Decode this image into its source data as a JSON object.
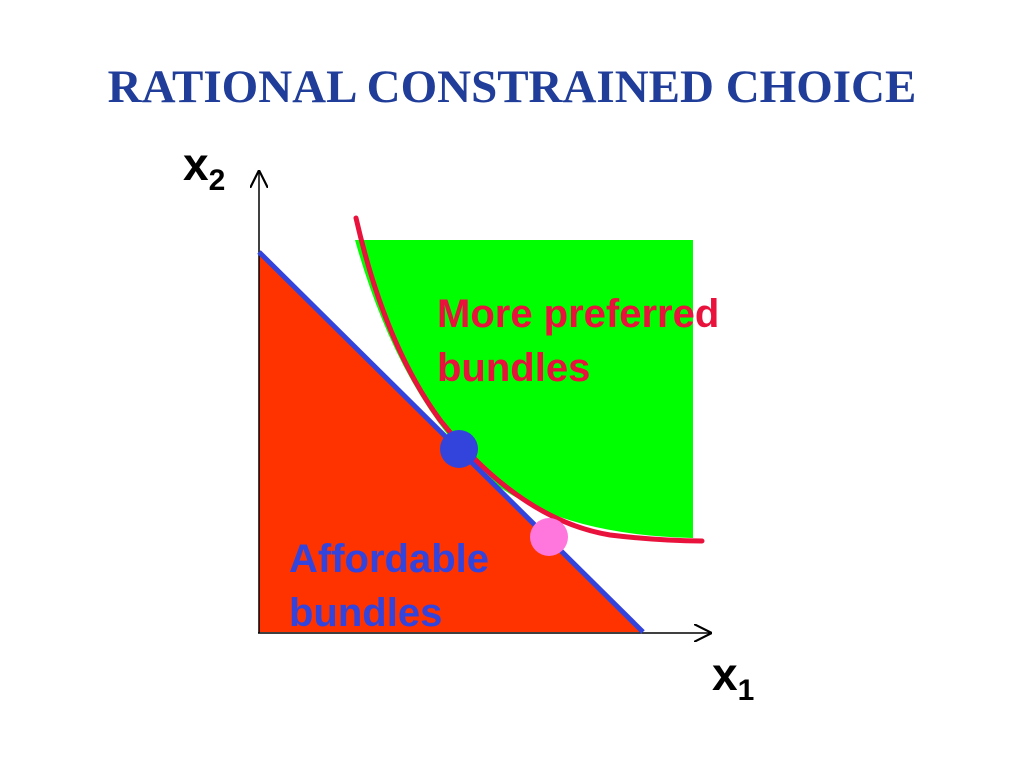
{
  "title": "RATIONAL CONSTRAINED CHOICE",
  "axes": {
    "y_label": {
      "base": "x",
      "sub": "2"
    },
    "x_label": {
      "base": "x",
      "sub": "1"
    }
  },
  "labels": {
    "preferred": [
      "More preferred",
      "bundles"
    ],
    "affordable": [
      "Affordable",
      "bundles"
    ]
  },
  "colors": {
    "title": "#1f3d99",
    "preferred_region": "#00ff00",
    "affordable_region": "#ff3300",
    "budget_line": "#3344dd",
    "indifference_curve": "#e8123c",
    "optimal_bundle": "#3344dd",
    "other_bundle": "#ff77dd",
    "preferred_text": "#e8123c",
    "affordable_text": "#3344dd"
  }
}
